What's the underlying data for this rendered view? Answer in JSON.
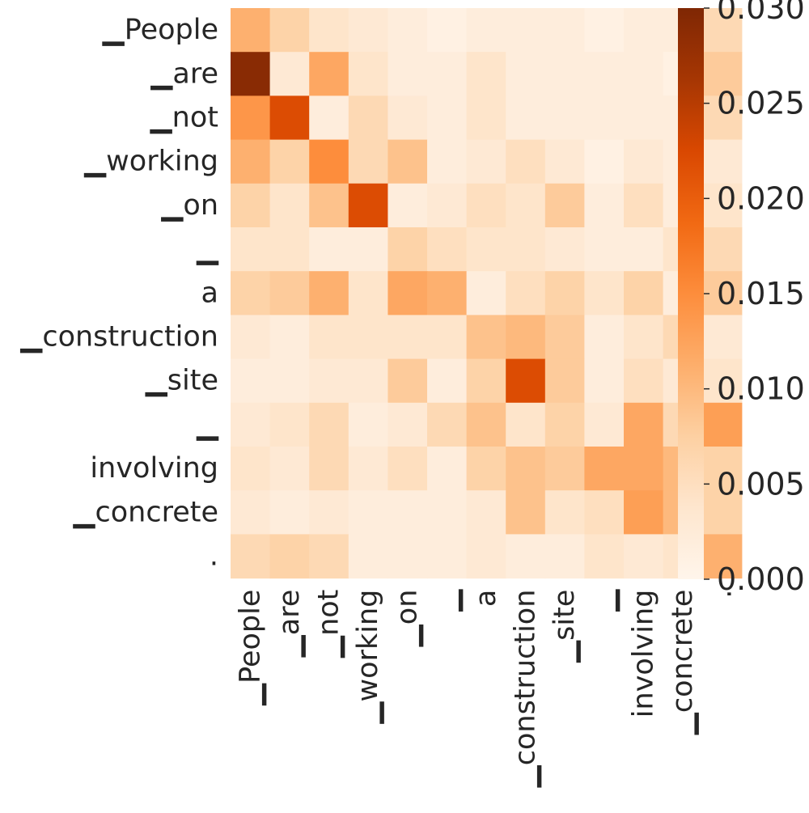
{
  "chart_data": {
    "type": "heatmap",
    "title": "",
    "xlabel": "",
    "ylabel": "",
    "row_labels": [
      "▁People",
      "▁are",
      "▁not",
      "▁working",
      "▁on",
      "▁",
      "a",
      "▁construction",
      "▁site",
      "▁",
      "involving",
      "▁concrete",
      "."
    ],
    "col_labels": [
      "▁People",
      "▁are",
      "▁not",
      "▁working",
      "▁on",
      "▁",
      "a",
      "▁construction",
      "▁site",
      "▁",
      "involving",
      "▁concrete",
      "."
    ],
    "values": [
      [
        0.011,
        0.007,
        0.004,
        0.003,
        0.002,
        0.001,
        0.002,
        0.002,
        0.002,
        0.001,
        0.002,
        0.002,
        0.006
      ],
      [
        0.029,
        0.003,
        0.012,
        0.004,
        0.002,
        0.002,
        0.004,
        0.002,
        0.002,
        0.002,
        0.002,
        0.001,
        0.008
      ],
      [
        0.014,
        0.022,
        0.002,
        0.006,
        0.003,
        0.002,
        0.004,
        0.002,
        0.002,
        0.002,
        0.002,
        0.002,
        0.006
      ],
      [
        0.011,
        0.007,
        0.015,
        0.006,
        0.009,
        0.002,
        0.003,
        0.005,
        0.003,
        0.001,
        0.003,
        0.002,
        0.003
      ],
      [
        0.007,
        0.004,
        0.009,
        0.022,
        0.002,
        0.003,
        0.005,
        0.004,
        0.008,
        0.002,
        0.005,
        0.002,
        0.004
      ],
      [
        0.004,
        0.004,
        0.002,
        0.002,
        0.007,
        0.005,
        0.004,
        0.004,
        0.003,
        0.002,
        0.002,
        0.004,
        0.006
      ],
      [
        0.007,
        0.008,
        0.011,
        0.004,
        0.012,
        0.011,
        0.002,
        0.005,
        0.007,
        0.004,
        0.007,
        0.002,
        0.008
      ],
      [
        0.003,
        0.002,
        0.004,
        0.004,
        0.004,
        0.004,
        0.009,
        0.01,
        0.008,
        0.002,
        0.004,
        0.006,
        0.003
      ],
      [
        0.002,
        0.002,
        0.003,
        0.003,
        0.008,
        0.002,
        0.007,
        0.022,
        0.008,
        0.002,
        0.005,
        0.003,
        0.004
      ],
      [
        0.003,
        0.004,
        0.006,
        0.002,
        0.003,
        0.006,
        0.009,
        0.004,
        0.007,
        0.003,
        0.012,
        0.006,
        0.013
      ],
      [
        0.004,
        0.003,
        0.006,
        0.003,
        0.005,
        0.002,
        0.007,
        0.009,
        0.008,
        0.012,
        0.012,
        0.01,
        0.007
      ],
      [
        0.003,
        0.002,
        0.003,
        0.002,
        0.002,
        0.002,
        0.003,
        0.009,
        0.004,
        0.005,
        0.013,
        0.01,
        0.007
      ],
      [
        0.006,
        0.007,
        0.006,
        0.002,
        0.002,
        0.002,
        0.003,
        0.002,
        0.002,
        0.004,
        0.003,
        0.004,
        0.011
      ]
    ],
    "colorbar": {
      "min": 0.0,
      "max": 0.03,
      "ticks": [
        "0.000",
        "0.005",
        "0.010",
        "0.015",
        "0.020",
        "0.025",
        "0.030"
      ],
      "colors": [
        "#fff5eb",
        "#fee6ce",
        "#fdd0a2",
        "#fdae6b",
        "#fd8d3c",
        "#f16913",
        "#d94801",
        "#a63603",
        "#7f2704"
      ]
    },
    "colormap": "Oranges",
    "grid": false,
    "legend": "right"
  }
}
